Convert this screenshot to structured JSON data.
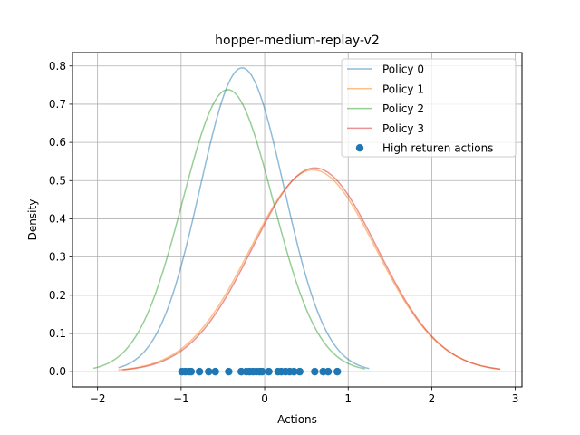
{
  "chart_data": {
    "type": "line",
    "title": "hopper-medium-replay-v2",
    "xlabel": "Actions",
    "ylabel": "Density",
    "xlim": [
      -2.3,
      3.08
    ],
    "ylim": [
      -0.04,
      0.835
    ],
    "xticks": [
      -2,
      -1,
      0,
      1,
      2,
      3
    ],
    "yticks": [
      0.0,
      0.1,
      0.2,
      0.3,
      0.4,
      0.5,
      0.6,
      0.7,
      0.8
    ],
    "grid": true,
    "legend_position": "top-right",
    "series": [
      {
        "name": "Policy 0",
        "color": "#1f77b4",
        "mean": -0.27,
        "peak": 0.795,
        "x_range": [
          -1.75,
          1.25
        ]
      },
      {
        "name": "Policy 1",
        "color": "#ff7f0e",
        "mean": 0.58,
        "peak": 0.528,
        "x_range": [
          -1.75,
          2.82
        ]
      },
      {
        "name": "Policy 2",
        "color": "#2ca02c",
        "mean": -0.44,
        "peak": 0.738,
        "x_range": [
          -2.05,
          1.2
        ]
      },
      {
        "name": "Policy 3",
        "color": "#d62728",
        "mean": 0.6,
        "peak": 0.533,
        "x_range": [
          -1.7,
          2.82
        ]
      }
    ],
    "scatter": {
      "name": "High returen actions",
      "color": "#1f77b4",
      "y": 0.0,
      "x": [
        -0.99,
        -0.95,
        -0.91,
        -0.88,
        -0.78,
        -0.67,
        -0.59,
        -0.43,
        -0.28,
        -0.22,
        -0.18,
        -0.14,
        -0.1,
        -0.06,
        -0.03,
        0.05,
        0.16,
        0.2,
        0.25,
        0.3,
        0.35,
        0.42,
        0.6,
        0.7,
        0.76,
        0.87
      ]
    }
  }
}
